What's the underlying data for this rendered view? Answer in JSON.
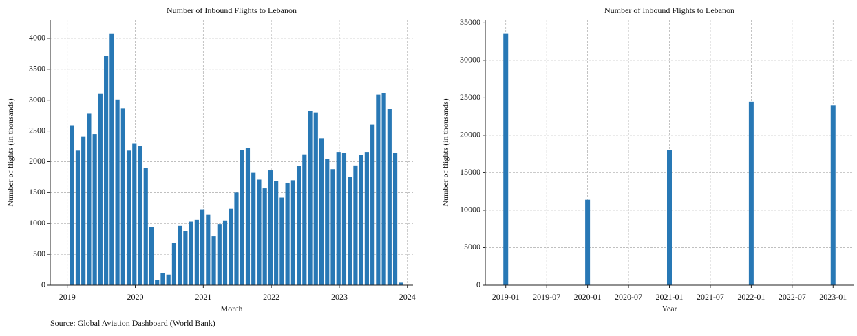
{
  "chart_data": [
    {
      "type": "bar",
      "title": "Number of Inbound Flights to Lebanon",
      "xlabel": "Month",
      "ylabel": "Number of flights (in thousands)",
      "color": "#2878b5",
      "grid": true,
      "x": [
        "2019-01",
        "2019-02",
        "2019-03",
        "2019-04",
        "2019-05",
        "2019-06",
        "2019-07",
        "2019-08",
        "2019-09",
        "2019-10",
        "2019-11",
        "2019-12",
        "2020-01",
        "2020-02",
        "2020-03",
        "2020-04",
        "2020-05",
        "2020-06",
        "2020-07",
        "2020-08",
        "2020-09",
        "2020-10",
        "2020-11",
        "2020-12",
        "2021-01",
        "2021-02",
        "2021-03",
        "2021-04",
        "2021-05",
        "2021-06",
        "2021-07",
        "2021-08",
        "2021-09",
        "2021-10",
        "2021-11",
        "2021-12",
        "2022-01",
        "2022-02",
        "2022-03",
        "2022-04",
        "2022-05",
        "2022-06",
        "2022-07",
        "2022-08",
        "2022-09",
        "2022-10",
        "2022-11",
        "2022-12",
        "2023-01",
        "2023-02",
        "2023-03",
        "2023-04",
        "2023-05",
        "2023-06",
        "2023-07",
        "2023-08",
        "2023-09",
        "2023-10",
        "2023-11"
      ],
      "values": [
        2590,
        2180,
        2410,
        2780,
        2450,
        3100,
        3720,
        4080,
        3010,
        2870,
        2180,
        2300,
        2250,
        1900,
        940,
        80,
        200,
        170,
        690,
        960,
        880,
        1030,
        1060,
        1230,
        1140,
        790,
        990,
        1050,
        1240,
        1500,
        2190,
        2220,
        1820,
        1710,
        1570,
        1860,
        1690,
        1420,
        1660,
        1700,
        1930,
        2120,
        2820,
        2800,
        2380,
        2040,
        1880,
        2160,
        2140,
        1760,
        1940,
        2110,
        2160,
        2600,
        3090,
        3110,
        2860,
        2150,
        40
      ],
      "xlim": [
        "2018-10",
        "2024-02"
      ],
      "xticks": [
        2019,
        2020,
        2021,
        2022,
        2023,
        2024
      ],
      "ylim": [
        0,
        4300
      ],
      "yticks": [
        0,
        500,
        1000,
        1500,
        2000,
        2500,
        3000,
        3500,
        4000
      ]
    },
    {
      "type": "bar",
      "title": "Number of Inbound Flights to Lebanon",
      "xlabel": "Year",
      "ylabel": "Number of flights (in thousands)",
      "color": "#2878b5",
      "grid": true,
      "x": [
        "2019-01",
        "2020-01",
        "2021-01",
        "2022-01",
        "2023-01"
      ],
      "values": [
        33600,
        11400,
        18000,
        24500,
        24000
      ],
      "xlim": [
        "2018-10",
        "2023-04"
      ],
      "xticks": [
        "2019-01",
        "2019-07",
        "2020-01",
        "2020-07",
        "2021-01",
        "2021-07",
        "2022-01",
        "2022-07",
        "2023-01"
      ],
      "ylim": [
        0,
        35400
      ],
      "yticks": [
        0,
        5000,
        10000,
        15000,
        20000,
        25000,
        30000,
        35000
      ]
    }
  ],
  "source": "Source: Global Aviation Dashboard (World Bank)"
}
